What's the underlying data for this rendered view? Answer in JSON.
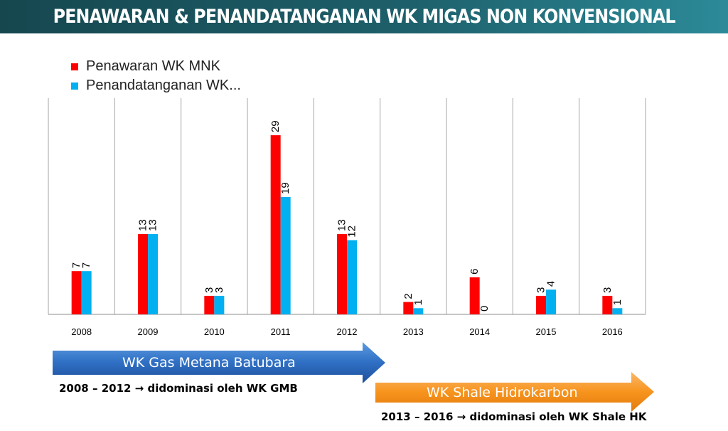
{
  "title": "PENAWARAN & PENANDATANGANAN WK MIGAS NON KONVENSIONAL",
  "chart_data": {
    "type": "bar",
    "categories": [
      "2008",
      "2009",
      "2010",
      "2011",
      "2012",
      "2013",
      "2014",
      "2015",
      "2016"
    ],
    "series": [
      {
        "name": "Penawaran WK MNK",
        "color": "#ff0000",
        "values": [
          7,
          13,
          3,
          29,
          13,
          2,
          6,
          3,
          3
        ]
      },
      {
        "name": "Penandatanganan WK...",
        "color": "#00b0f0",
        "values": [
          7,
          13,
          3,
          19,
          12,
          1,
          0,
          4,
          1
        ]
      }
    ],
    "ylim": [
      0,
      35
    ],
    "grid": "vertical separators",
    "legend": "top-left",
    "data_labels": true
  },
  "arrows": [
    {
      "label": "WK Gas Metana Batubara",
      "note": "2008 – 2012 → didominasi oleh WK GMB",
      "color": "#3a7bd5"
    },
    {
      "label": "WK Shale Hidrokarbon",
      "note": "2013 – 2016 → didominasi oleh WK Shale HK",
      "color": "#f79646"
    }
  ]
}
